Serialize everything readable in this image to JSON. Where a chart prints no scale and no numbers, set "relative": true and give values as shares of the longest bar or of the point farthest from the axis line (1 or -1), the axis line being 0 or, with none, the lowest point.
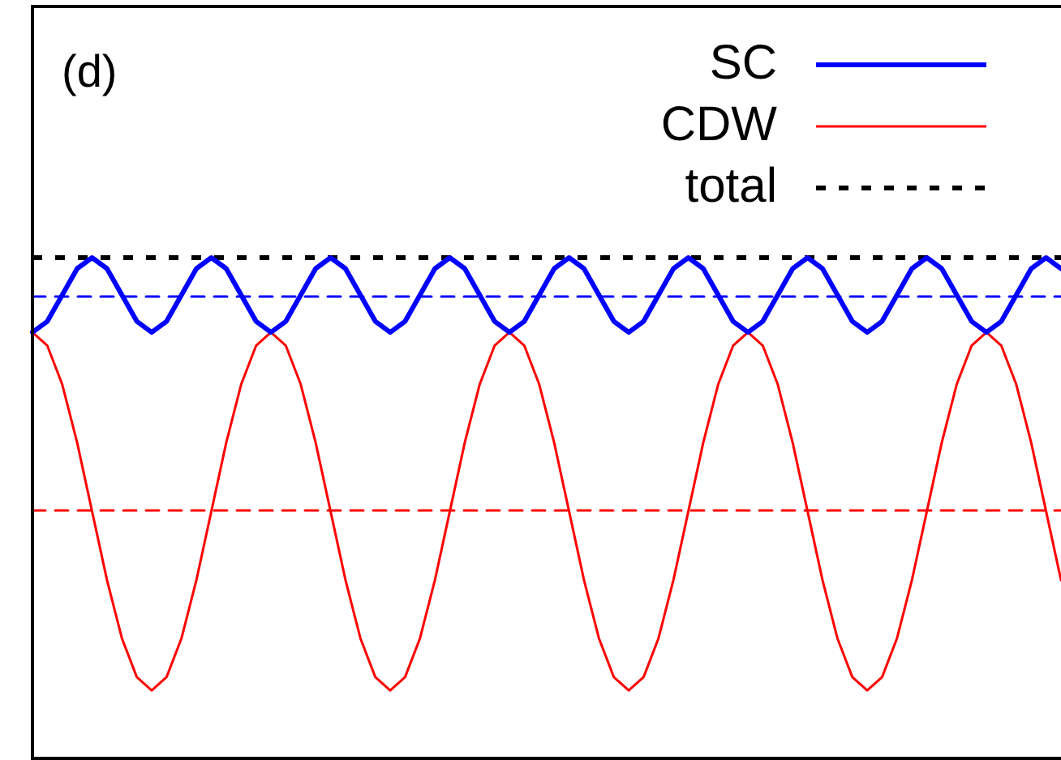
{
  "chart_data": {
    "type": "line",
    "relative": true,
    "categories": [
      null,
      null,
      null,
      null,
      null,
      null,
      null,
      null,
      null,
      null,
      null,
      null,
      null,
      null,
      null,
      null,
      null,
      null,
      null,
      null,
      null,
      null,
      null,
      null,
      null,
      null,
      null,
      null,
      null,
      null,
      null,
      null,
      null,
      null,
      null,
      null,
      null,
      null,
      null,
      null,
      null,
      null,
      null,
      null,
      null,
      null,
      null,
      null,
      null,
      null,
      null,
      null,
      null,
      null,
      null,
      null,
      null,
      null,
      null,
      null,
      null,
      null,
      null,
      null,
      null,
      null,
      null,
      null,
      null,
      null
    ],
    "series": [
      {
        "name": "SC",
        "color": "#0000ff",
        "line_style": "solid",
        "values": [
          0.85,
          0.872,
          0.925,
          0.978,
          1,
          0.978,
          0.925,
          0.872,
          0.85,
          0.872,
          0.925,
          0.978,
          1,
          0.978,
          0.925,
          0.872,
          0.85,
          0.872,
          0.925,
          0.978,
          1,
          0.978,
          0.925,
          0.872,
          0.85,
          0.872,
          0.925,
          0.978,
          1,
          0.978,
          0.925,
          0.872,
          0.85,
          0.872,
          0.925,
          0.978,
          1,
          0.978,
          0.925,
          0.872,
          0.85,
          0.872,
          0.925,
          0.978,
          1,
          0.978,
          0.925,
          0.872,
          0.85,
          0.872,
          0.925,
          0.978,
          1,
          0.978,
          0.925,
          0.872,
          0.85,
          0.872,
          0.925,
          0.978,
          1,
          0.978,
          0.925,
          0.872,
          0.85,
          0.872,
          0.925,
          0.978,
          1,
          0.978
        ]
      },
      {
        "name": "CDW",
        "color": "#ff0000",
        "line_style": "solid",
        "values": [
          0.85,
          0.823,
          0.745,
          0.628,
          0.49,
          0.352,
          0.235,
          0.157,
          0.13,
          0.157,
          0.235,
          0.352,
          0.49,
          0.628,
          0.745,
          0.823,
          0.85,
          0.823,
          0.745,
          0.628,
          0.49,
          0.352,
          0.235,
          0.157,
          0.13,
          0.157,
          0.235,
          0.352,
          0.49,
          0.628,
          0.745,
          0.823,
          0.85,
          0.823,
          0.745,
          0.628,
          0.49,
          0.352,
          0.235,
          0.157,
          0.13,
          0.157,
          0.235,
          0.352,
          0.49,
          0.628,
          0.745,
          0.823,
          0.85,
          0.823,
          0.745,
          0.628,
          0.49,
          0.352,
          0.235,
          0.157,
          0.13,
          0.157,
          0.235,
          0.352,
          0.49,
          0.628,
          0.745,
          0.823,
          0.85,
          0.823,
          0.745,
          0.628,
          0.49,
          0.352
        ]
      },
      {
        "name": "total",
        "color": "#000000",
        "line_style": "dotted",
        "values": [
          1,
          1,
          1,
          1,
          1,
          1,
          1,
          1,
          1,
          1,
          1,
          1,
          1,
          1,
          1,
          1,
          1,
          1,
          1,
          1,
          1,
          1,
          1,
          1,
          1,
          1,
          1,
          1,
          1,
          1,
          1,
          1,
          1,
          1,
          1,
          1,
          1,
          1,
          1,
          1,
          1,
          1,
          1,
          1,
          1,
          1,
          1,
          1,
          1,
          1,
          1,
          1,
          1,
          1,
          1,
          1,
          1,
          1,
          1,
          1,
          1,
          1,
          1,
          1,
          1,
          1,
          1,
          1,
          1,
          1
        ]
      },
      {
        "color": "#0000ff",
        "line_style": "dashed",
        "values": [
          0.922,
          0.922,
          0.922,
          0.922,
          0.922,
          0.922,
          0.922,
          0.922,
          0.922,
          0.922,
          0.922,
          0.922,
          0.922,
          0.922,
          0.922,
          0.922,
          0.922,
          0.922,
          0.922,
          0.922,
          0.922,
          0.922,
          0.922,
          0.922,
          0.922,
          0.922,
          0.922,
          0.922,
          0.922,
          0.922,
          0.922,
          0.922,
          0.922,
          0.922,
          0.922,
          0.922,
          0.922,
          0.922,
          0.922,
          0.922,
          0.922,
          0.922,
          0.922,
          0.922,
          0.922,
          0.922,
          0.922,
          0.922,
          0.922,
          0.922,
          0.922,
          0.922,
          0.922,
          0.922,
          0.922,
          0.922,
          0.922,
          0.922,
          0.922,
          0.922,
          0.922,
          0.922,
          0.922,
          0.922,
          0.922,
          0.922,
          0.922,
          0.922,
          0.922,
          0.922
        ]
      },
      {
        "color": "#ff0000",
        "line_style": "dashed",
        "values": [
          0.492,
          0.492,
          0.492,
          0.492,
          0.492,
          0.492,
          0.492,
          0.492,
          0.492,
          0.492,
          0.492,
          0.492,
          0.492,
          0.492,
          0.492,
          0.492,
          0.492,
          0.492,
          0.492,
          0.492,
          0.492,
          0.492,
          0.492,
          0.492,
          0.492,
          0.492,
          0.492,
          0.492,
          0.492,
          0.492,
          0.492,
          0.492,
          0.492,
          0.492,
          0.492,
          0.492,
          0.492,
          0.492,
          0.492,
          0.492,
          0.492,
          0.492,
          0.492,
          0.492,
          0.492,
          0.492,
          0.492,
          0.492,
          0.492,
          0.492,
          0.492,
          0.492,
          0.492,
          0.492,
          0.492,
          0.492,
          0.492,
          0.492,
          0.492,
          0.492,
          0.492,
          0.492,
          0.492,
          0.492,
          0.492,
          0.492,
          0.492,
          0.492,
          0.492,
          0.492
        ]
      }
    ],
    "legend": "top right",
    "marker": "none",
    "annotations": [
      "(d)"
    ]
  }
}
